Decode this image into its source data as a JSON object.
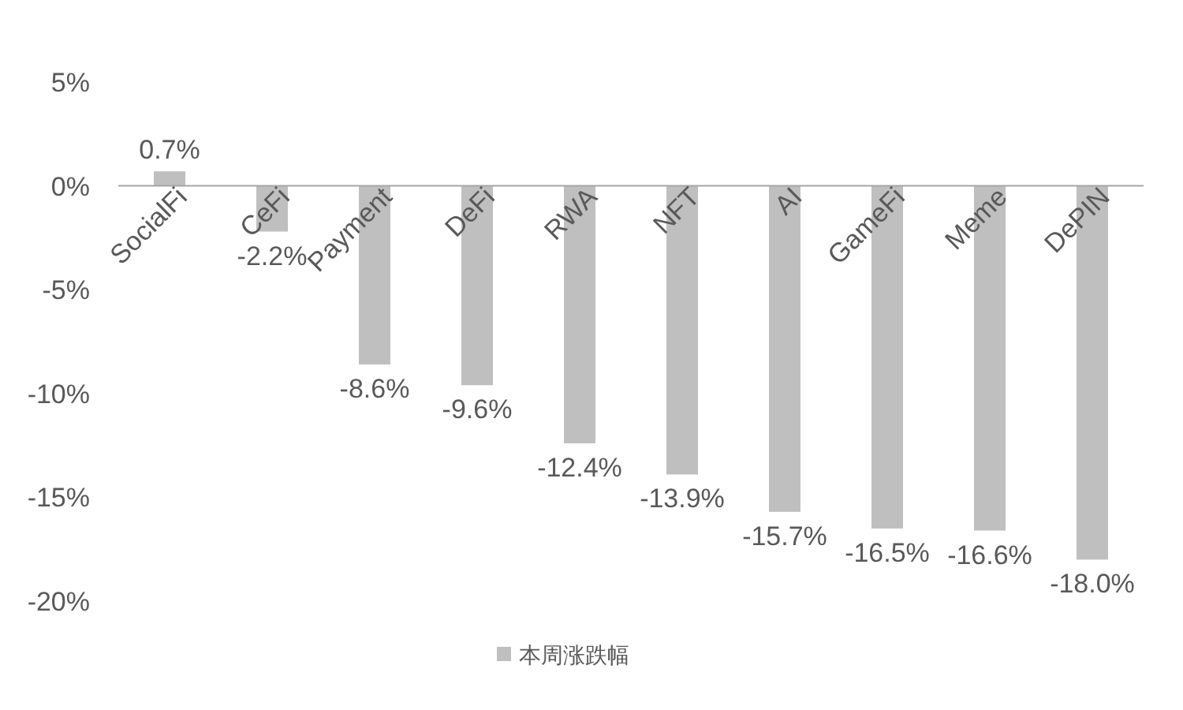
{
  "chart_data": {
    "type": "bar",
    "categories": [
      "SocialFi",
      "CeFi",
      "Payment",
      "DeFi",
      "RWA",
      "NFT",
      "AI",
      "GameFi",
      "Meme",
      "DePIN"
    ],
    "series": [
      {
        "name": "本周涨跌幅",
        "color": "#bfbfbf",
        "values": [
          0.7,
          -2.2,
          -8.6,
          -9.6,
          -12.4,
          -13.9,
          -15.7,
          -16.5,
          -16.6,
          -18.0
        ],
        "value_labels": [
          "0.7%",
          "-2.2%",
          "-8.6%",
          "-9.6%",
          "-12.4%",
          "-13.9%",
          "-15.7%",
          "-16.5%",
          "-16.6%",
          "-18.0%"
        ]
      }
    ],
    "ylim": [
      -20,
      5
    ],
    "yticks": [
      {
        "value": 5,
        "label": "5%"
      },
      {
        "value": 0,
        "label": "0%"
      },
      {
        "value": -5,
        "label": "-5%"
      },
      {
        "value": -10,
        "label": "-10%"
      },
      {
        "value": -15,
        "label": "-15%"
      },
      {
        "value": -20,
        "label": "-20%"
      }
    ],
    "grid": false,
    "legend": "bottom"
  }
}
